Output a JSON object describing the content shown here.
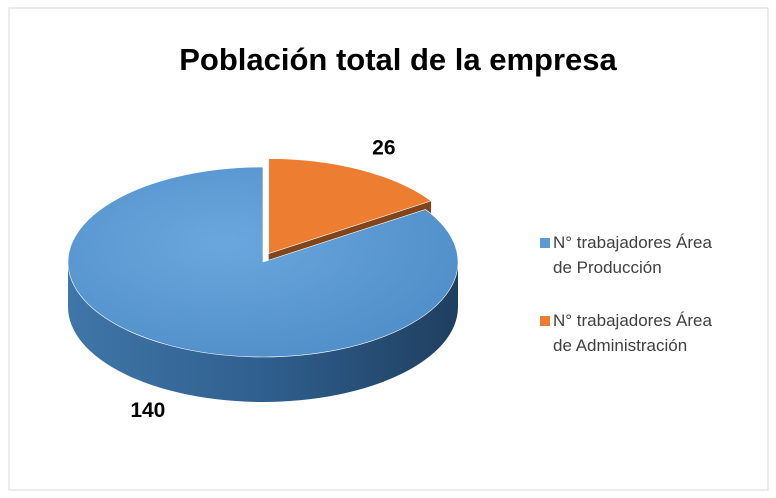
{
  "chart_data": {
    "type": "pie3d",
    "title": "Población total de la empresa",
    "categories": [
      "N° trabajadores Área de Producción",
      "N° trabajadores Área de Administración"
    ],
    "values": [
      140,
      26
    ],
    "colors": [
      "#5b9bd5",
      "#ed7d31"
    ],
    "legend": "right"
  }
}
